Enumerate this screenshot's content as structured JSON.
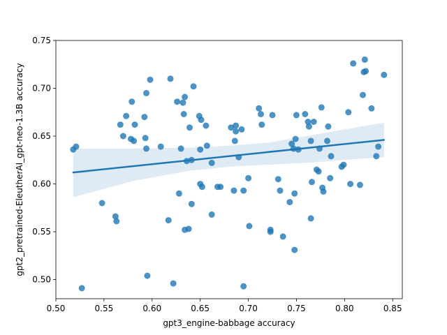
{
  "chart_data": {
    "type": "scatter",
    "xlabel": "gpt3_engine-babbage accuracy",
    "ylabel": "gpt2_pretrained-EleutherAI_gpt-neo-1.3B accuracy",
    "xlim": [
      0.5,
      0.86
    ],
    "ylim": [
      0.48,
      0.75
    ],
    "xticks": [
      "0.50",
      "0.55",
      "0.60",
      "0.65",
      "0.70",
      "0.75",
      "0.80",
      "0.85"
    ],
    "yticks": [
      "0.50",
      "0.55",
      "0.60",
      "0.65",
      "0.70",
      "0.75"
    ],
    "grid": false,
    "colors": {
      "points": "#1f77b4",
      "line": "#1f77b4",
      "band": "#1f77b4"
    },
    "regression": {
      "x": [
        0.518,
        0.841
      ],
      "y": [
        0.612,
        0.646
      ]
    },
    "confidence_band": {
      "x": [
        0.518,
        0.58,
        0.64,
        0.68,
        0.72,
        0.76,
        0.8,
        0.841
      ],
      "lower": [
        0.586,
        0.603,
        0.614,
        0.618,
        0.62,
        0.622,
        0.625,
        0.628
      ],
      "upper": [
        0.637,
        0.637,
        0.638,
        0.64,
        0.643,
        0.65,
        0.657,
        0.664
      ]
    },
    "points": [
      [
        0.518,
        0.636
      ],
      [
        0.521,
        0.639
      ],
      [
        0.527,
        0.491
      ],
      [
        0.548,
        0.58
      ],
      [
        0.562,
        0.566
      ],
      [
        0.563,
        0.561
      ],
      [
        0.567,
        0.662
      ],
      [
        0.57,
        0.65
      ],
      [
        0.573,
        0.671
      ],
      [
        0.578,
        0.647
      ],
      [
        0.579,
        0.686
      ],
      [
        0.581,
        0.645
      ],
      [
        0.582,
        0.662
      ],
      [
        0.592,
        0.67
      ],
      [
        0.593,
        0.648
      ],
      [
        0.594,
        0.637
      ],
      [
        0.594,
        0.695
      ],
      [
        0.595,
        0.504
      ],
      [
        0.598,
        0.709
      ],
      [
        0.609,
        0.639
      ],
      [
        0.617,
        0.562
      ],
      [
        0.619,
        0.71
      ],
      [
        0.622,
        0.496
      ],
      [
        0.626,
        0.686
      ],
      [
        0.628,
        0.59
      ],
      [
        0.63,
        0.637
      ],
      [
        0.632,
        0.685
      ],
      [
        0.633,
        0.673
      ],
      [
        0.634,
        0.691
      ],
      [
        0.634,
        0.552
      ],
      [
        0.636,
        0.624
      ],
      [
        0.638,
        0.553
      ],
      [
        0.639,
        0.659
      ],
      [
        0.641,
        0.579
      ],
      [
        0.641,
        0.625
      ],
      [
        0.643,
        0.702
      ],
      [
        0.649,
        0.671
      ],
      [
        0.65,
        0.6
      ],
      [
        0.65,
        0.636
      ],
      [
        0.651,
        0.667
      ],
      [
        0.652,
        0.597
      ],
      [
        0.656,
        0.661
      ],
      [
        0.657,
        0.64
      ],
      [
        0.662,
        0.622
      ],
      [
        0.662,
        0.568
      ],
      [
        0.668,
        0.597
      ],
      [
        0.671,
        0.597
      ],
      [
        0.682,
        0.659
      ],
      [
        0.685,
        0.593
      ],
      [
        0.686,
        0.645
      ],
      [
        0.687,
        0.661
      ],
      [
        0.687,
        0.655
      ],
      [
        0.69,
        0.628
      ],
      [
        0.693,
        0.657
      ],
      [
        0.695,
        0.493
      ],
      [
        0.695,
        0.593
      ],
      [
        0.7,
        0.606
      ],
      [
        0.701,
        0.556
      ],
      [
        0.711,
        0.679
      ],
      [
        0.713,
        0.673
      ],
      [
        0.714,
        0.662
      ],
      [
        0.723,
        0.55
      ],
      [
        0.723,
        0.552
      ],
      [
        0.725,
        0.672
      ],
      [
        0.731,
        0.605
      ],
      [
        0.733,
        0.593
      ],
      [
        0.736,
        0.545
      ],
      [
        0.743,
        0.581
      ],
      [
        0.745,
        0.642
      ],
      [
        0.747,
        0.637
      ],
      [
        0.748,
        0.59
      ],
      [
        0.748,
        0.531
      ],
      [
        0.749,
        0.647
      ],
      [
        0.75,
        0.672
      ],
      [
        0.752,
        0.636
      ],
      [
        0.759,
        0.673
      ],
      [
        0.762,
        0.665
      ],
      [
        0.763,
        0.66
      ],
      [
        0.765,
        0.645
      ],
      [
        0.765,
        0.564
      ],
      [
        0.766,
        0.602
      ],
      [
        0.768,
        0.665
      ],
      [
        0.771,
        0.615
      ],
      [
        0.773,
        0.613
      ],
      [
        0.774,
        0.637
      ],
      [
        0.776,
        0.68
      ],
      [
        0.777,
        0.596
      ],
      [
        0.778,
        0.592
      ],
      [
        0.782,
        0.645
      ],
      [
        0.783,
        0.66
      ],
      [
        0.785,
        0.606
      ],
      [
        0.786,
        0.629
      ],
      [
        0.797,
        0.618
      ],
      [
        0.799,
        0.62
      ],
      [
        0.804,
        0.675
      ],
      [
        0.806,
        0.6
      ],
      [
        0.809,
        0.726
      ],
      [
        0.816,
        0.599
      ],
      [
        0.819,
        0.693
      ],
      [
        0.82,
        0.717
      ],
      [
        0.822,
        0.718
      ],
      [
        0.821,
        0.73
      ],
      [
        0.828,
        0.679
      ],
      [
        0.833,
        0.629
      ],
      [
        0.835,
        0.639
      ],
      [
        0.841,
        0.714
      ]
    ]
  }
}
